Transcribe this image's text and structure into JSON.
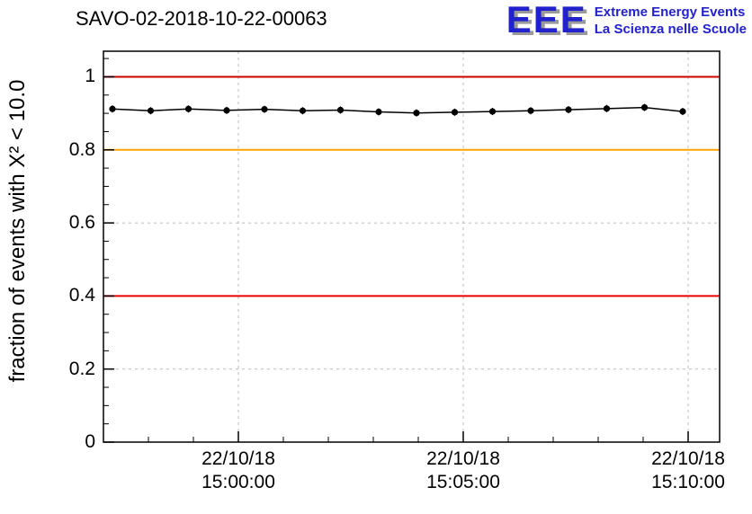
{
  "header": {
    "title": "SAVO-02-2018-10-22-00063",
    "logo": {
      "acronym": "EEE",
      "line1": "Extreme Energy Events",
      "line2": "La Scienza nelle Scuole",
      "color": "#2222cc"
    }
  },
  "chart_data": {
    "type": "line",
    "title": "SAVO-02-2018-10-22-00063",
    "xlabel": "",
    "ylabel": "fraction of events with X² < 10.0",
    "ylim": [
      0,
      1.07
    ],
    "yticks": [
      0,
      0.2,
      0.4,
      0.6,
      0.8,
      1
    ],
    "ytick_labels": [
      "0",
      "0.2",
      "0.4",
      "0.6",
      "0.8",
      "1"
    ],
    "grid": {
      "on": true,
      "dashed": true,
      "color": "#bbbbbb"
    },
    "legend": "none",
    "x_axis": {
      "units": "minutes relative to 15:00:00 on 22/10/18",
      "range_minutes_from_1500": [
        -3.0,
        10.7
      ],
      "minor_tick_every_minutes": 1,
      "ticks": [
        {
          "pos": 0,
          "date": "22/10/18",
          "time": "15:00:00"
        },
        {
          "pos": 5,
          "date": "22/10/18",
          "time": "15:05:00"
        },
        {
          "pos": 10,
          "date": "22/10/18",
          "time": "15:10:00"
        }
      ]
    },
    "reference_lines": [
      {
        "y": 1.0,
        "color": "#cc0000",
        "meaning": "upper red limit"
      },
      {
        "y": 0.8,
        "color": "#ffa500",
        "meaning": "orange warning level"
      },
      {
        "y": 0.4,
        "color": "#ee0000",
        "meaning": "lower red limit"
      }
    ],
    "series": [
      {
        "name": "fraction of events with chi2 < 10.0",
        "color": "#000000",
        "marker": "filled-circle",
        "y_error": 0.005,
        "x_minutes_from_1500": [
          -2.8,
          -1.95,
          -1.11,
          -0.26,
          0.58,
          1.43,
          2.27,
          3.12,
          3.96,
          4.81,
          5.65,
          6.5,
          7.34,
          8.19,
          9.03,
          9.88
        ],
        "values": [
          0.912,
          0.907,
          0.912,
          0.908,
          0.911,
          0.907,
          0.909,
          0.904,
          0.901,
          0.903,
          0.905,
          0.907,
          0.91,
          0.913,
          0.916,
          0.905
        ]
      }
    ]
  }
}
